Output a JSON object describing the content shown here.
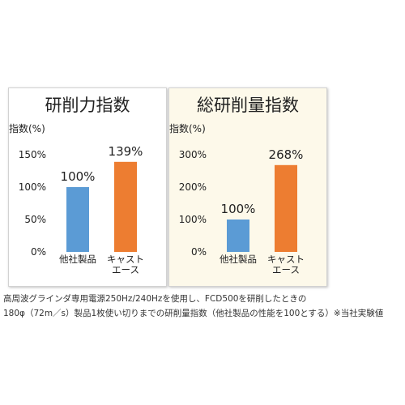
{
  "chart_data": [
    {
      "type": "bar",
      "title": "研削力指数",
      "ylabel": "指数(%)",
      "categories": [
        "他社製品",
        "キャストエース"
      ],
      "category_lines": [
        [
          "他社製品"
        ],
        [
          "キャスト",
          "エース"
        ]
      ],
      "values": [
        100,
        139
      ],
      "value_labels": [
        "100%",
        "139%"
      ],
      "colors": [
        "#5b9bd5",
        "#ed7d31"
      ],
      "ylim": [
        0,
        150
      ],
      "yticks": [
        0,
        50,
        100,
        150
      ],
      "ytick_labels": [
        "0%",
        "50%",
        "100%",
        "150%"
      ],
      "grid": false
    },
    {
      "type": "bar",
      "title": "総研削量指数",
      "ylabel": "指数(%)",
      "categories": [
        "他社製品",
        "キャストエース"
      ],
      "category_lines": [
        [
          "他社製品"
        ],
        [
          "キャスト",
          "エース"
        ]
      ],
      "values": [
        100,
        268
      ],
      "value_labels": [
        "100%",
        "268%"
      ],
      "colors": [
        "#5b9bd5",
        "#ed7d31"
      ],
      "ylim": [
        0,
        300
      ],
      "yticks": [
        0,
        100,
        200,
        300
      ],
      "ytick_labels": [
        "0%",
        "100%",
        "200%",
        "300%"
      ],
      "grid": false
    }
  ],
  "caption": {
    "line1": "高周波グラインダ専用電源250Hz/240Hzを使用し、FCD500を研削したときの",
    "line2": "180φ（72m／s）製品1枚使い切りまでの研削量指数（他社製品の性能を100とする）※当社実験値"
  }
}
